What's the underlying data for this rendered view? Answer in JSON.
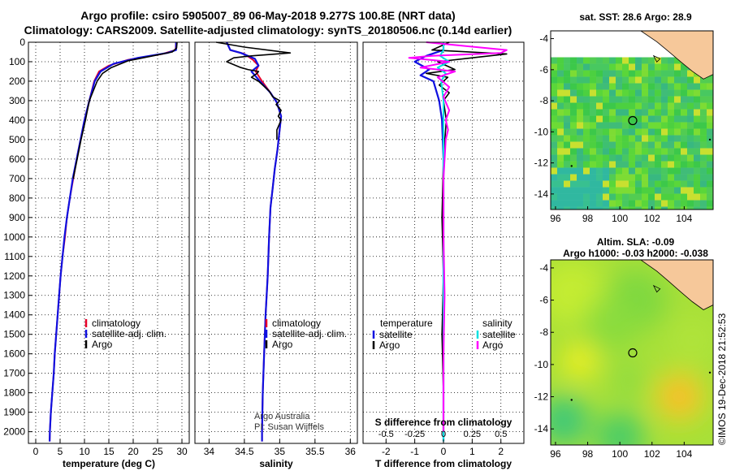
{
  "titles": {
    "line1": "Argo profile: csiro 5905007_89 06-May-2018 9.277S 100.8E (NRT data)",
    "line2": "Climatology: CARS2009. Satellite-adjusted climatology: synTS_20180506.nc (0.14d earlier)"
  },
  "colors": {
    "climatology": "#e8002a",
    "satellite": "#1010e0",
    "argo": "#000000",
    "sat_salinity": "#00e0e0",
    "argo_salinity": "#ff00ff",
    "land": "#f6c89a"
  },
  "depth_axis": {
    "ylim": [
      2060,
      0
    ],
    "ticks": [
      "0",
      "100",
      "200",
      "300",
      "400",
      "500",
      "600",
      "700",
      "800",
      "900",
      "1000",
      "1100",
      "1200",
      "1300",
      "1400",
      "1500",
      "1600",
      "1700",
      "1800",
      "1900",
      "2000"
    ]
  },
  "chart_data": [
    {
      "id": "temperature",
      "type": "line",
      "xlabel": "temperature (deg C)",
      "xlim": [
        -1.5,
        31.5
      ],
      "xticks": [
        "0",
        "5",
        "10",
        "15",
        "20",
        "25",
        "30"
      ],
      "legend": [
        "climatology",
        "satellite-adj. clim.",
        "Argo"
      ],
      "series": [
        {
          "name": "climatology",
          "color_key": "climatology",
          "points": [
            [
              28.8,
              0
            ],
            [
              28.7,
              40
            ],
            [
              26,
              60
            ],
            [
              19,
              90
            ],
            [
              15,
              120
            ],
            [
              13,
              150
            ],
            [
              12,
              200
            ],
            [
              11,
              300
            ],
            [
              10,
              400
            ],
            [
              9.2,
              500
            ],
            [
              8.4,
              600
            ],
            [
              7.7,
              700
            ],
            [
              7,
              800
            ],
            [
              6.4,
              900
            ],
            [
              6,
              1000
            ],
            [
              5.5,
              1100
            ],
            [
              5.1,
              1200
            ],
            [
              4.8,
              1300
            ],
            [
              4.5,
              1400
            ],
            [
              4.2,
              1500
            ],
            [
              3.9,
              1600
            ],
            [
              3.7,
              1700
            ],
            [
              3.4,
              1800
            ],
            [
              3.1,
              1900
            ],
            [
              2.9,
              2000
            ],
            [
              2.85,
              2050
            ]
          ]
        },
        {
          "name": "satellite-adj. clim.",
          "color_key": "satellite",
          "points": [
            [
              28.8,
              0
            ],
            [
              28.8,
              40
            ],
            [
              27,
              55
            ],
            [
              21,
              80
            ],
            [
              16,
              110
            ],
            [
              13.3,
              150
            ],
            [
              12.1,
              200
            ],
            [
              11,
              300
            ],
            [
              10,
              400
            ],
            [
              9.2,
              500
            ],
            [
              8.4,
              600
            ],
            [
              7.6,
              700
            ],
            [
              7,
              800
            ],
            [
              6.4,
              900
            ],
            [
              5.9,
              1000
            ],
            [
              5.5,
              1100
            ],
            [
              5.1,
              1200
            ],
            [
              4.8,
              1300
            ],
            [
              4.5,
              1400
            ],
            [
              4.2,
              1500
            ],
            [
              3.9,
              1600
            ],
            [
              3.7,
              1700
            ],
            [
              3.4,
              1800
            ],
            [
              3.1,
              1900
            ],
            [
              2.9,
              2000
            ],
            [
              2.85,
              2050
            ]
          ]
        },
        {
          "name": "Argo",
          "color_key": "argo",
          "points": [
            [
              29,
              0
            ],
            [
              28.9,
              30
            ],
            [
              28,
              50
            ],
            [
              24,
              70
            ],
            [
              19,
              95
            ],
            [
              15.5,
              130
            ],
            [
              13.7,
              160
            ],
            [
              12.6,
              200
            ],
            [
              11.8,
              250
            ],
            [
              11,
              300
            ],
            [
              10.2,
              400
            ],
            [
              9.3,
              500
            ],
            [
              8.5,
              600
            ],
            [
              7.7,
              700
            ]
          ]
        }
      ]
    },
    {
      "id": "salinity",
      "type": "line",
      "xlabel": "salinity",
      "xlim": [
        33.8,
        36.1
      ],
      "xticks": [
        "34",
        "34.5",
        "35",
        "35.5",
        "36"
      ],
      "legend": [
        "climatology",
        "satellite-adj. clim.",
        "Argo"
      ],
      "annotation": [
        "Argo Australia",
        "PI: Susan Wijffels"
      ],
      "series": [
        {
          "name": "climatology",
          "color_key": "climatology",
          "points": [
            [
              34.25,
              0
            ],
            [
              34.3,
              40
            ],
            [
              34.5,
              60
            ],
            [
              34.62,
              90
            ],
            [
              34.7,
              120
            ],
            [
              34.66,
              150
            ],
            [
              34.75,
              200
            ],
            [
              34.87,
              260
            ],
            [
              34.96,
              310
            ],
            [
              35.02,
              380
            ],
            [
              35,
              450
            ],
            [
              34.97,
              550
            ],
            [
              34.93,
              650
            ],
            [
              34.9,
              750
            ],
            [
              34.87,
              850
            ],
            [
              34.85,
              1000
            ],
            [
              34.83,
              1200
            ],
            [
              34.8,
              1400
            ],
            [
              34.78,
              1600
            ],
            [
              34.76,
              1800
            ],
            [
              34.75,
              2000
            ],
            [
              34.75,
              2050
            ]
          ]
        },
        {
          "name": "satellite-adj. clim.",
          "color_key": "satellite",
          "points": [
            [
              34.25,
              0
            ],
            [
              34.3,
              40
            ],
            [
              34.45,
              55
            ],
            [
              34.65,
              85
            ],
            [
              34.7,
              120
            ],
            [
              34.6,
              150
            ],
            [
              34.72,
              200
            ],
            [
              34.87,
              260
            ],
            [
              34.96,
              310
            ],
            [
              35.02,
              380
            ],
            [
              35,
              450
            ],
            [
              34.97,
              550
            ],
            [
              34.93,
              650
            ],
            [
              34.9,
              750
            ],
            [
              34.87,
              850
            ],
            [
              34.85,
              1000
            ],
            [
              34.83,
              1200
            ],
            [
              34.8,
              1400
            ],
            [
              34.78,
              1600
            ],
            [
              34.76,
              1800
            ],
            [
              34.75,
              2000
            ],
            [
              34.75,
              2050
            ]
          ]
        },
        {
          "name": "Argo",
          "color_key": "argo",
          "points": [
            [
              34.1,
              0
            ],
            [
              34.5,
              25
            ],
            [
              35.15,
              55
            ],
            [
              34.6,
              70
            ],
            [
              34.35,
              80
            ],
            [
              34.25,
              100
            ],
            [
              34.45,
              130
            ],
            [
              34.55,
              140
            ],
            [
              34.7,
              150
            ],
            [
              34.68,
              160
            ],
            [
              34.6,
              180
            ],
            [
              34.7,
              200
            ],
            [
              34.85,
              250
            ],
            [
              34.9,
              280
            ],
            [
              35,
              300
            ],
            [
              34.95,
              320
            ],
            [
              35.02,
              350
            ],
            [
              34.98,
              380
            ],
            [
              35.02,
              400
            ],
            [
              34.96,
              450
            ],
            [
              34.96,
              500
            ]
          ]
        }
      ]
    },
    {
      "id": "differences",
      "type": "line",
      "xlabel": "T difference from climatology",
      "xlim": [
        -2.8,
        2.8
      ],
      "xticks": [
        "-2",
        "-1",
        "0",
        "1",
        "2"
      ],
      "secondary_axis": {
        "xlabel": "S difference from climatology",
        "xlim": [
          -0.7,
          0.7
        ],
        "xticks": [
          "-0.5",
          "-0.25",
          "0",
          "0.25",
          "0.5"
        ]
      },
      "legend_temperature": {
        "header": "temperature",
        "items": [
          "satellite",
          "Argo"
        ]
      },
      "legend_salinity": {
        "header": "salinity",
        "items": [
          "satellite",
          "Argo"
        ]
      },
      "series": [
        {
          "name": "temperature satellite",
          "axis": "T",
          "color_key": "satellite",
          "points": [
            [
              0,
              0
            ],
            [
              0,
              40
            ],
            [
              -0.6,
              70
            ],
            [
              -1,
              100
            ],
            [
              -0.5,
              140
            ],
            [
              -0.8,
              170
            ],
            [
              -0.35,
              200
            ],
            [
              -0.15,
              300
            ],
            [
              -0.05,
              400
            ],
            [
              0,
              600
            ],
            [
              0,
              1000
            ],
            [
              0,
              1500
            ],
            [
              0,
              2000
            ],
            [
              0,
              2050
            ]
          ]
        },
        {
          "name": "temperature Argo",
          "axis": "T",
          "color_key": "argo",
          "points": [
            [
              0.2,
              0
            ],
            [
              -0.4,
              40
            ],
            [
              2.2,
              60
            ],
            [
              1,
              80
            ],
            [
              -0.2,
              100
            ],
            [
              0.4,
              140
            ],
            [
              -0.6,
              160
            ],
            [
              0.15,
              180
            ],
            [
              -0.15,
              220
            ],
            [
              0.2,
              260
            ],
            [
              0,
              300
            ],
            [
              0.1,
              400
            ],
            [
              0,
              600
            ],
            [
              -0.05,
              900
            ],
            [
              0,
              1200
            ],
            [
              -0.05,
              1500
            ],
            [
              0,
              1800
            ],
            [
              0,
              2000
            ]
          ]
        },
        {
          "name": "salinity satellite",
          "axis": "S",
          "color_key": "sat_salinity",
          "points": [
            [
              0,
              0
            ],
            [
              0,
              40
            ],
            [
              -0.03,
              70
            ],
            [
              0.05,
              100
            ],
            [
              -0.05,
              130
            ],
            [
              0.02,
              160
            ],
            [
              -0.02,
              200
            ],
            [
              0,
              300
            ],
            [
              0,
              600
            ],
            [
              0,
              1000
            ],
            [
              0,
              1500
            ],
            [
              0,
              2000
            ],
            [
              0,
              2050
            ]
          ]
        },
        {
          "name": "salinity Argo",
          "axis": "S",
          "color_key": "argo_salinity",
          "points": [
            [
              -0.15,
              0
            ],
            [
              0.55,
              40
            ],
            [
              0.5,
              55
            ],
            [
              -0.1,
              70
            ],
            [
              -0.3,
              80
            ],
            [
              0.05,
              100
            ],
            [
              -0.2,
              130
            ],
            [
              0.1,
              150
            ],
            [
              -0.05,
              180
            ],
            [
              0.05,
              230
            ],
            [
              0,
              280
            ],
            [
              0.05,
              350
            ],
            [
              0.02,
              400
            ],
            [
              0.04,
              450
            ],
            [
              0.02,
              500
            ],
            [
              0,
              700
            ],
            [
              0,
              1000
            ],
            [
              0.01,
              1300
            ],
            [
              0,
              1600
            ],
            [
              0,
              2000
            ]
          ]
        }
      ]
    },
    {
      "id": "map_sst",
      "type": "heatmap",
      "title": "sat. SST: 28.6 Argo: 28.9",
      "xlim": [
        95.7,
        105.8
      ],
      "ylim": [
        -15,
        -3.5
      ],
      "xticks": [
        "96",
        "98",
        "100",
        "102",
        "104"
      ],
      "yticks": [
        "-4",
        "-6",
        "-8",
        "-10",
        "-12",
        "-14"
      ],
      "marker": {
        "lon": 100.8,
        "lat": -9.277
      }
    },
    {
      "id": "map_sla",
      "type": "heatmap",
      "title": "Altim. SLA: -0.09",
      "subtitle": "Argo h1000: -0.03 h2000: -0.038",
      "xlim": [
        95.7,
        105.8
      ],
      "ylim": [
        -15,
        -3.5
      ],
      "xticks": [
        "96",
        "98",
        "100",
        "102",
        "104"
      ],
      "yticks": [
        "-4",
        "-6",
        "-8",
        "-10",
        "-12",
        "-14"
      ],
      "marker": {
        "lon": 100.8,
        "lat": -9.277
      }
    }
  ],
  "stamp": "©IMOS 19-Dec-2018 21:52:53"
}
